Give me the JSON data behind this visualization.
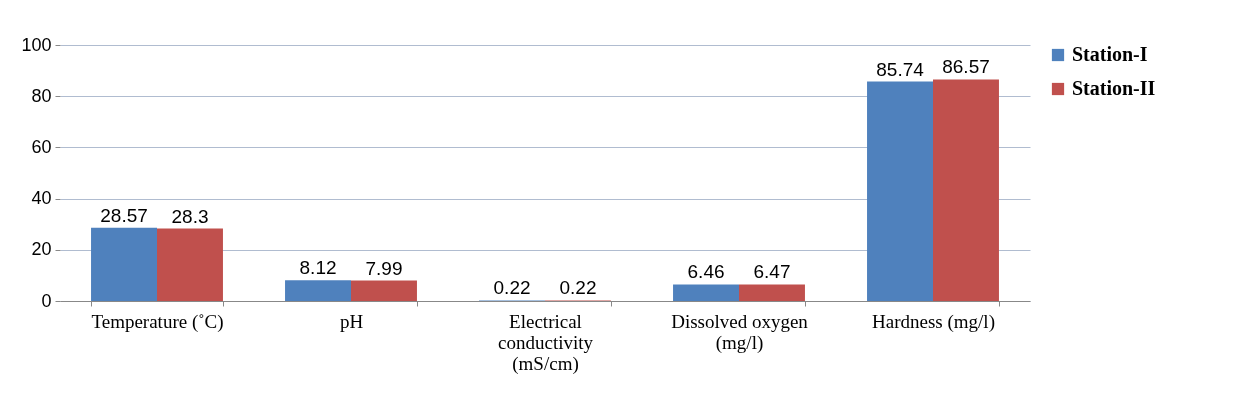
{
  "chart_data": {
    "type": "bar",
    "categories": [
      "Temperature (˚C)",
      "pH",
      "Electrical conductivity (mS/cm)",
      "Dissolved oxygen (mg/l)",
      "Hardness (mg/l)"
    ],
    "series": [
      {
        "name": "Station-I",
        "color": "#4f81bd",
        "values": [
          28.57,
          8.12,
          0.22,
          6.46,
          85.74
        ]
      },
      {
        "name": "Station-II",
        "color": "#c0504d",
        "values": [
          28.3,
          7.99,
          0.22,
          6.47,
          86.57
        ]
      }
    ],
    "ylim": [
      0,
      100
    ],
    "yticks": [
      0,
      20,
      40,
      60,
      80,
      100
    ],
    "grid": "y",
    "legend": "right",
    "data_labels": true
  }
}
